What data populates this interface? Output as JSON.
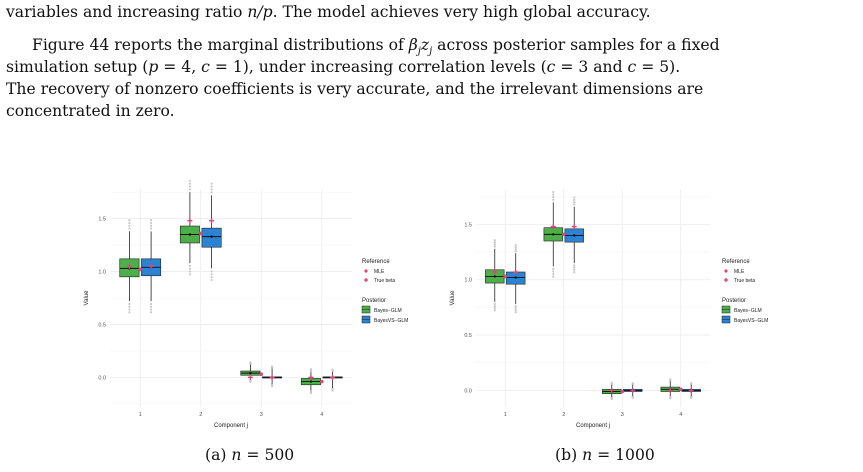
{
  "text": {
    "top_line": "variables and increasing ratio n/p. The model achieves very high global accuracy.",
    "para_lines": [
      "Figure 44 reports the marginal distributions of β_j z_j across posterior samples for a fixed",
      "simulation setup (p = 4, c = 1), under increasing correlation levels (c = 3 and c = 5).",
      "The recovery of nonzero coefficients is very accurate, and the irrelevant dimensions are",
      "concentrated in zero."
    ]
  },
  "captions": [
    "(a) n = 500",
    "(b) n = 1000"
  ],
  "chart_data": [
    {
      "type": "boxplot",
      "xlabel": "Component j",
      "ylabel": "Value",
      "categories": [
        "1",
        "2",
        "3",
        "4"
      ],
      "y_ticks": [
        "0.0",
        "0.5",
        "1.0",
        "1.5"
      ],
      "ylim": [
        -0.28,
        1.78
      ],
      "legend": {
        "reference_title": "Reference",
        "reference_items": [
          "MLE",
          "True beta"
        ],
        "posterior_title": "Posterior",
        "posterior_items": [
          "Bayes−GLM",
          "BayesVS−GLM"
        ]
      },
      "colors": {
        "Bayes-GLM": "#4daf4a",
        "BayesVS-GLM": "#2b83d3",
        "reference": "#e0457b"
      },
      "series": [
        {
          "name": "Bayes−GLM",
          "boxes": [
            {
              "min": 0.72,
              "q1": 0.95,
              "median": 1.03,
              "q3": 1.12,
              "max": 1.38,
              "mean": 1.03
            },
            {
              "min": 1.08,
              "q1": 1.27,
              "median": 1.35,
              "q3": 1.43,
              "max": 1.75,
              "mean": 1.35
            },
            {
              "min": -0.02,
              "q1": 0.02,
              "median": 0.04,
              "q3": 0.06,
              "max": 0.12,
              "mean": 0.04
            },
            {
              "min": -0.12,
              "q1": -0.07,
              "median": -0.04,
              "q3": -0.01,
              "max": 0.05,
              "mean": -0.04
            }
          ]
        },
        {
          "name": "BayesVS−GLM",
          "boxes": [
            {
              "min": 0.72,
              "q1": 0.96,
              "median": 1.04,
              "q3": 1.12,
              "max": 1.38,
              "mean": 1.04
            },
            {
              "min": 1.03,
              "q1": 1.23,
              "median": 1.33,
              "q3": 1.41,
              "max": 1.72,
              "mean": 1.33
            },
            {
              "min": -0.06,
              "q1": -0.005,
              "median": 0.0,
              "q3": 0.005,
              "max": 0.08,
              "mean": 0.0
            },
            {
              "min": -0.1,
              "q1": -0.005,
              "median": 0.0,
              "q3": 0.005,
              "max": 0.05,
              "mean": 0.0
            }
          ]
        }
      ],
      "mle": [
        1.02,
        1.36,
        0.03,
        -0.04
      ],
      "true_beta": [
        1.05,
        1.48,
        0.0,
        0.0
      ]
    },
    {
      "type": "boxplot",
      "xlabel": "Component j",
      "ylabel": "Value",
      "categories": [
        "1",
        "2",
        "3",
        "4"
      ],
      "y_ticks": [
        "0.0",
        "0.5",
        "1.0",
        "1.5"
      ],
      "ylim": [
        -0.15,
        1.82
      ],
      "legend": {
        "reference_title": "Reference",
        "reference_items": [
          "MLE",
          "True beta"
        ],
        "posterior_title": "Posterior",
        "posterior_items": [
          "Bayes−GLM",
          "BayesVS−GLM"
        ]
      },
      "colors": {
        "Bayes-GLM": "#4daf4a",
        "BayesVS-GLM": "#2b83d3",
        "reference": "#e0457b"
      },
      "series": [
        {
          "name": "Bayes−GLM",
          "boxes": [
            {
              "min": 0.8,
              "q1": 0.97,
              "median": 1.03,
              "q3": 1.09,
              "max": 1.28,
              "mean": 1.03
            },
            {
              "min": 1.12,
              "q1": 1.35,
              "median": 1.41,
              "q3": 1.47,
              "max": 1.7,
              "mean": 1.41
            },
            {
              "min": -0.06,
              "q1": -0.03,
              "median": -0.01,
              "q3": 0.01,
              "max": 0.05,
              "mean": -0.01
            },
            {
              "min": -0.05,
              "q1": -0.01,
              "median": 0.01,
              "q3": 0.03,
              "max": 0.08,
              "mean": 0.01
            }
          ]
        },
        {
          "name": "BayesVS−GLM",
          "boxes": [
            {
              "min": 0.78,
              "q1": 0.96,
              "median": 1.02,
              "q3": 1.07,
              "max": 1.24,
              "mean": 1.02
            },
            {
              "min": 1.15,
              "q1": 1.34,
              "median": 1.4,
              "q3": 1.46,
              "max": 1.66,
              "mean": 1.4
            },
            {
              "min": -0.05,
              "q1": -0.01,
              "median": 0.0,
              "q3": 0.01,
              "max": 0.05,
              "mean": 0.0
            },
            {
              "min": -0.05,
              "q1": -0.01,
              "median": 0.0,
              "q3": 0.01,
              "max": 0.05,
              "mean": 0.0
            }
          ]
        }
      ],
      "mle": [
        1.03,
        1.41,
        -0.01,
        0.01
      ],
      "true_beta": [
        1.07,
        1.48,
        0.0,
        0.0
      ]
    }
  ]
}
